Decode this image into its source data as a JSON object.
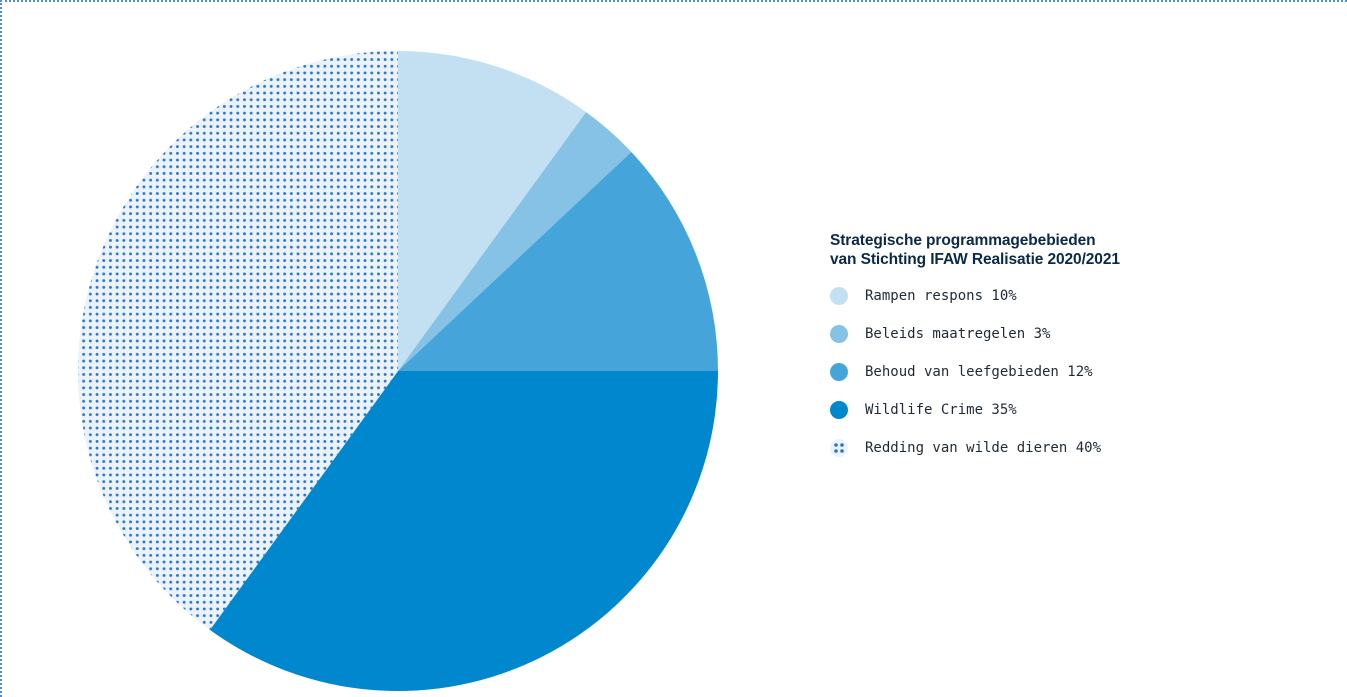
{
  "chart_data": {
    "type": "pie",
    "title_lines": [
      "Strategische programmagebebieden",
      "van Stichting IFAW Realisatie 2020/2021"
    ],
    "start_angle_deg": 0,
    "direction": "clockwise",
    "slices": [
      {
        "label": "Rampen respons 10%",
        "value": 10,
        "color": "#c2e0f2",
        "pattern": "solid"
      },
      {
        "label": "Beleids maatregelen 3%",
        "value": 3,
        "color": "#85c2e6",
        "pattern": "solid"
      },
      {
        "label": "Behoud van leefgebieden 12%",
        "value": 12,
        "color": "#45a5da",
        "pattern": "solid"
      },
      {
        "label": "Wildlife Crime 35%",
        "value": 35,
        "color": "#0087cd",
        "pattern": "solid"
      },
      {
        "label": "Redding van wilde dieren 40%",
        "value": 40,
        "color": "#2f74c9",
        "pattern": "dots"
      }
    ]
  }
}
